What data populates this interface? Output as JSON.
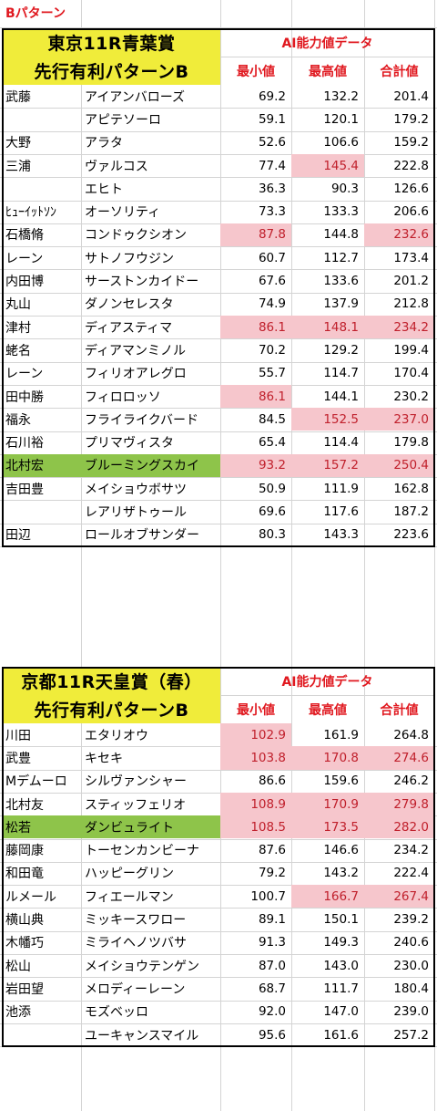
{
  "pattern_label": "Bパターン",
  "tables": [
    {
      "race_title": "東京11R青葉賞",
      "pattern_title": "先行有利パターンB",
      "ai_header": "AI能力値データ",
      "col_min": "最小値",
      "col_max": "最高値",
      "col_total": "合計値",
      "rows": [
        {
          "jockey": "武藤",
          "horse": "アイアンバローズ",
          "min": "69.2",
          "max": "132.2",
          "total": "201.4",
          "hl": [
            false,
            false,
            false
          ],
          "green": false
        },
        {
          "jockey": "",
          "horse": "アピテソーロ",
          "min": "59.1",
          "max": "120.1",
          "total": "179.2",
          "hl": [
            false,
            false,
            false
          ],
          "green": false
        },
        {
          "jockey": "大野",
          "horse": "アラタ",
          "min": "52.6",
          "max": "106.6",
          "total": "159.2",
          "hl": [
            false,
            false,
            false
          ],
          "green": false
        },
        {
          "jockey": "三浦",
          "horse": "ヴァルコス",
          "min": "77.4",
          "max": "145.4",
          "total": "222.8",
          "hl": [
            false,
            true,
            false
          ],
          "green": false
        },
        {
          "jockey": "",
          "horse": "エヒト",
          "min": "36.3",
          "max": "90.3",
          "total": "126.6",
          "hl": [
            false,
            false,
            false
          ],
          "green": false
        },
        {
          "jockey": "ﾋｭｰｲｯﾄｿﾝ",
          "horse": "オーソリティ",
          "min": "73.3",
          "max": "133.3",
          "total": "206.6",
          "hl": [
            false,
            false,
            false
          ],
          "green": false
        },
        {
          "jockey": "石橋脩",
          "horse": "コンドゥクシオン",
          "min": "87.8",
          "max": "144.8",
          "total": "232.6",
          "hl": [
            true,
            false,
            true
          ],
          "green": false
        },
        {
          "jockey": "レーン",
          "horse": "サトノフウジン",
          "min": "60.7",
          "max": "112.7",
          "total": "173.4",
          "hl": [
            false,
            false,
            false
          ],
          "green": false
        },
        {
          "jockey": "内田博",
          "horse": "サーストンカイドー",
          "min": "67.6",
          "max": "133.6",
          "total": "201.2",
          "hl": [
            false,
            false,
            false
          ],
          "green": false
        },
        {
          "jockey": "丸山",
          "horse": "ダノンセレスタ",
          "min": "74.9",
          "max": "137.9",
          "total": "212.8",
          "hl": [
            false,
            false,
            false
          ],
          "green": false
        },
        {
          "jockey": "津村",
          "horse": "ディアスティマ",
          "min": "86.1",
          "max": "148.1",
          "total": "234.2",
          "hl": [
            true,
            true,
            true
          ],
          "green": false
        },
        {
          "jockey": "蛯名",
          "horse": "ディアマンミノル",
          "min": "70.2",
          "max": "129.2",
          "total": "199.4",
          "hl": [
            false,
            false,
            false
          ],
          "green": false
        },
        {
          "jockey": "レーン",
          "horse": "フィリオアレグロ",
          "min": "55.7",
          "max": "114.7",
          "total": "170.4",
          "hl": [
            false,
            false,
            false
          ],
          "green": false
        },
        {
          "jockey": "田中勝",
          "horse": "フィロロッソ",
          "min": "86.1",
          "max": "144.1",
          "total": "230.2",
          "hl": [
            true,
            false,
            false
          ],
          "green": false
        },
        {
          "jockey": "福永",
          "horse": "フライライクバード",
          "min": "84.5",
          "max": "152.5",
          "total": "237.0",
          "hl": [
            false,
            true,
            true
          ],
          "green": false
        },
        {
          "jockey": "石川裕",
          "horse": "プリマヴィスタ",
          "min": "65.4",
          "max": "114.4",
          "total": "179.8",
          "hl": [
            false,
            false,
            false
          ],
          "green": false
        },
        {
          "jockey": "北村宏",
          "horse": "ブルーミングスカイ",
          "min": "93.2",
          "max": "157.2",
          "total": "250.4",
          "hl": [
            true,
            true,
            true
          ],
          "green": true
        },
        {
          "jockey": "吉田豊",
          "horse": "メイショウボサツ",
          "min": "50.9",
          "max": "111.9",
          "total": "162.8",
          "hl": [
            false,
            false,
            false
          ],
          "green": false
        },
        {
          "jockey": "",
          "horse": "レアリザトゥール",
          "min": "69.6",
          "max": "117.6",
          "total": "187.2",
          "hl": [
            false,
            false,
            false
          ],
          "green": false
        },
        {
          "jockey": "田辺",
          "horse": "ロールオブサンダー",
          "min": "80.3",
          "max": "143.3",
          "total": "223.6",
          "hl": [
            false,
            false,
            false
          ],
          "green": false
        }
      ]
    },
    {
      "race_title": "京都11R天皇賞（春）",
      "pattern_title": "先行有利パターンB",
      "ai_header": "AI能力値データ",
      "col_min": "最小値",
      "col_max": "最高値",
      "col_total": "合計値",
      "rows": [
        {
          "jockey": "川田",
          "horse": "エタリオウ",
          "min": "102.9",
          "max": "161.9",
          "total": "264.8",
          "hl": [
            true,
            false,
            false
          ],
          "green": false
        },
        {
          "jockey": "武豊",
          "horse": "キセキ",
          "min": "103.8",
          "max": "170.8",
          "total": "274.6",
          "hl": [
            true,
            true,
            true
          ],
          "green": false
        },
        {
          "jockey": "Mデムーロ",
          "horse": "シルヴァンシャー",
          "min": "86.6",
          "max": "159.6",
          "total": "246.2",
          "hl": [
            false,
            false,
            false
          ],
          "green": false
        },
        {
          "jockey": "北村友",
          "horse": "スティッフェリオ",
          "min": "108.9",
          "max": "170.9",
          "total": "279.8",
          "hl": [
            true,
            true,
            true
          ],
          "green": false
        },
        {
          "jockey": "松若",
          "horse": "ダンビュライト",
          "min": "108.5",
          "max": "173.5",
          "total": "282.0",
          "hl": [
            true,
            true,
            true
          ],
          "green": true
        },
        {
          "jockey": "藤岡康",
          "horse": "トーセンカンビーナ",
          "min": "87.6",
          "max": "146.6",
          "total": "234.2",
          "hl": [
            false,
            false,
            false
          ],
          "green": false
        },
        {
          "jockey": "和田竜",
          "horse": "ハッピーグリン",
          "min": "79.2",
          "max": "143.2",
          "total": "222.4",
          "hl": [
            false,
            false,
            false
          ],
          "green": false
        },
        {
          "jockey": "ルメール",
          "horse": "フィエールマン",
          "min": "100.7",
          "max": "166.7",
          "total": "267.4",
          "hl": [
            false,
            true,
            true
          ],
          "green": false
        },
        {
          "jockey": "横山典",
          "horse": "ミッキースワロー",
          "min": "89.1",
          "max": "150.1",
          "total": "239.2",
          "hl": [
            false,
            false,
            false
          ],
          "green": false
        },
        {
          "jockey": "木幡巧",
          "horse": "ミライヘノツバサ",
          "min": "91.3",
          "max": "149.3",
          "total": "240.6",
          "hl": [
            false,
            false,
            false
          ],
          "green": false
        },
        {
          "jockey": "松山",
          "horse": "メイショウテンゲン",
          "min": "87.0",
          "max": "143.0",
          "total": "230.0",
          "hl": [
            false,
            false,
            false
          ],
          "green": false
        },
        {
          "jockey": "岩田望",
          "horse": "メロディーレーン",
          "min": "68.7",
          "max": "111.7",
          "total": "180.4",
          "hl": [
            false,
            false,
            false
          ],
          "green": false
        },
        {
          "jockey": "池添",
          "horse": "モズベッロ",
          "min": "92.0",
          "max": "147.0",
          "total": "239.0",
          "hl": [
            false,
            false,
            false
          ],
          "green": false
        },
        {
          "jockey": "",
          "horse": "ユーキャンスマイル",
          "min": "95.6",
          "max": "161.6",
          "total": "257.2",
          "hl": [
            false,
            false,
            false
          ],
          "green": false
        }
      ]
    }
  ]
}
